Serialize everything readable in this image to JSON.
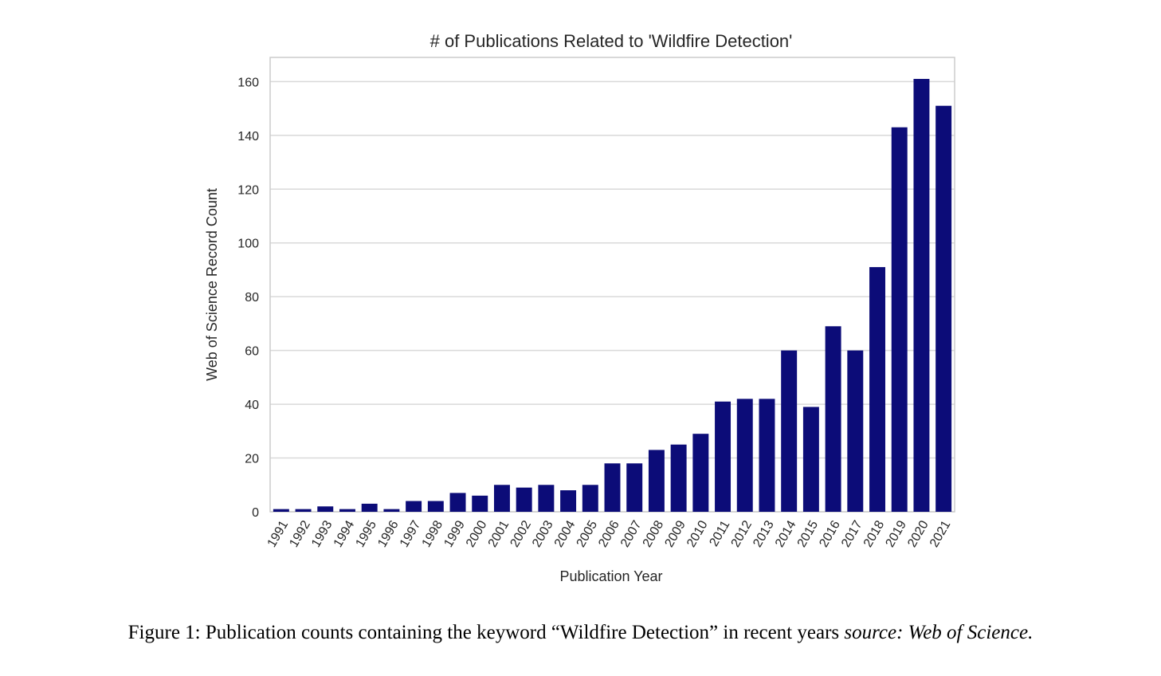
{
  "chart_data": {
    "type": "bar",
    "title": "# of Publications Related to 'Wildfire Detection'",
    "xlabel": "Publication Year",
    "ylabel": "Web of Science Record Count",
    "categories": [
      "1991",
      "1992",
      "1993",
      "1994",
      "1995",
      "1996",
      "1997",
      "1998",
      "1999",
      "2000",
      "2001",
      "2002",
      "2003",
      "2004",
      "2005",
      "2006",
      "2007",
      "2008",
      "2009",
      "2010",
      "2011",
      "2012",
      "2013",
      "2014",
      "2015",
      "2016",
      "2017",
      "2018",
      "2019",
      "2020",
      "2021"
    ],
    "values": [
      1,
      1,
      2,
      1,
      3,
      1,
      4,
      4,
      7,
      6,
      10,
      9,
      10,
      8,
      10,
      18,
      18,
      23,
      25,
      29,
      41,
      42,
      42,
      60,
      39,
      69,
      60,
      91,
      143,
      161,
      151
    ],
    "ylim": [
      0,
      169
    ],
    "yticks": [
      0,
      20,
      40,
      60,
      80,
      100,
      120,
      140,
      160
    ],
    "grid": true,
    "bar_color": "#0c0c78"
  },
  "caption": {
    "main": "Figure 1: Publication counts containing the keyword “Wildfire Detection” in recent years ",
    "source": "source: Web of Science."
  }
}
